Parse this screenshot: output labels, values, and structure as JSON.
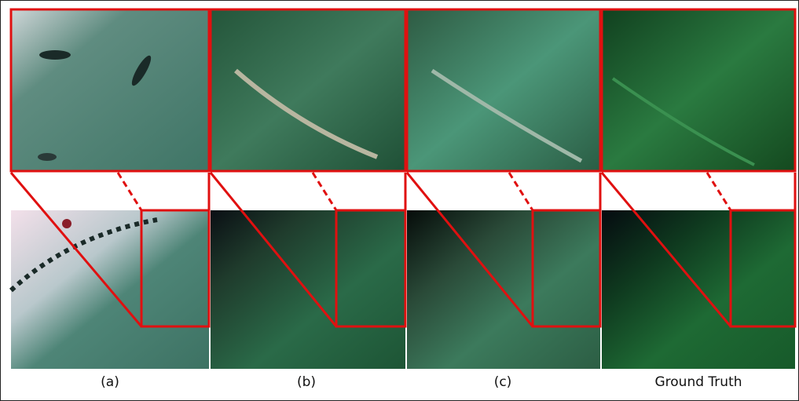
{
  "panels": [
    {
      "caption": "(a)"
    },
    {
      "caption": "(b)"
    },
    {
      "caption": "(c)"
    },
    {
      "caption": "Ground Truth"
    }
  ]
}
